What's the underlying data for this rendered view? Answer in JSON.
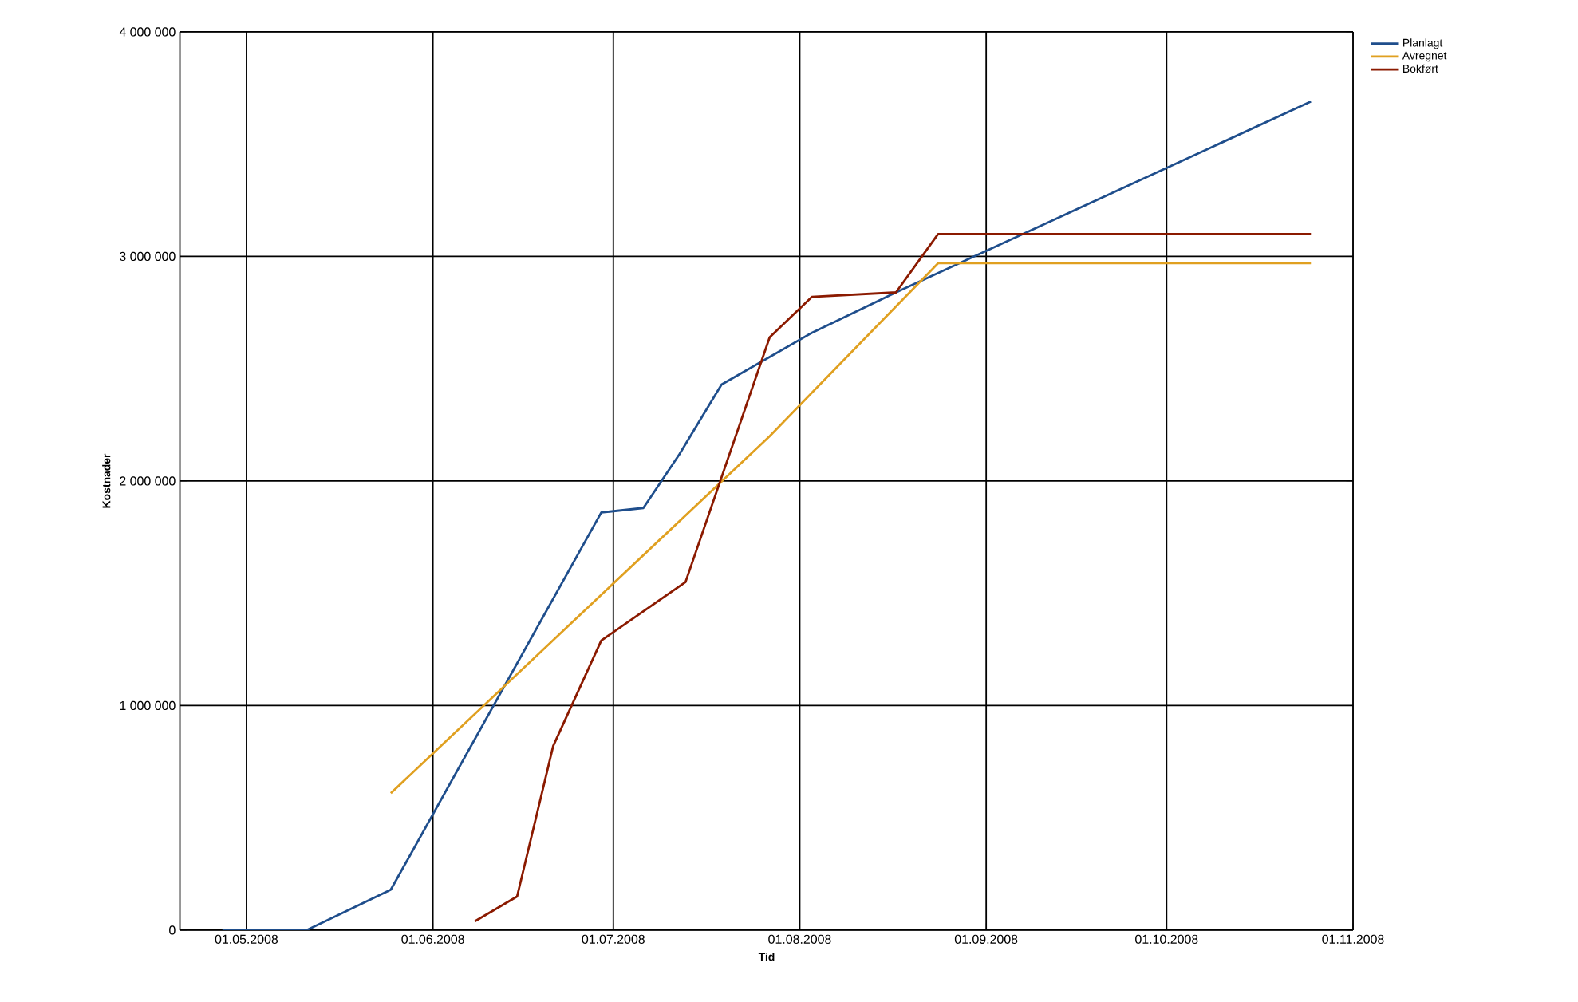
{
  "chart_data": {
    "type": "line",
    "xlabel": "Tid",
    "ylabel": "Kostnader",
    "xlim": [
      "2008-04-20",
      "2008-11-01"
    ],
    "xticks": [
      {
        "value": "2008-05-01",
        "label": "01.05.2008"
      },
      {
        "value": "2008-06-01",
        "label": "01.06.2008"
      },
      {
        "value": "2008-07-01",
        "label": "01.07.2008"
      },
      {
        "value": "2008-08-01",
        "label": "01.08.2008"
      },
      {
        "value": "2008-09-01",
        "label": "01.09.2008"
      },
      {
        "value": "2008-10-01",
        "label": "01.10.2008"
      },
      {
        "value": "2008-11-01",
        "label": "01.11.2008"
      }
    ],
    "ylim": [
      0,
      4000000
    ],
    "yticks": [
      {
        "value": 0,
        "label": "0"
      },
      {
        "value": 1000000,
        "label": "1 000 000"
      },
      {
        "value": 2000000,
        "label": "2 000 000"
      },
      {
        "value": 3000000,
        "label": "3 000 000"
      },
      {
        "value": 4000000,
        "label": "4 000 000"
      }
    ],
    "grid": true,
    "legend": "top right",
    "marker": "none",
    "line_style": "solid",
    "series": [
      {
        "name": "Planlagt",
        "color": "#1f4e8c",
        "x": [
          "2008-04-27",
          "2008-05-11",
          "2008-05-25",
          "2008-06-29",
          "2008-07-06",
          "2008-07-12",
          "2008-07-19",
          "2008-08-03",
          "2008-08-17",
          "2008-10-25"
        ],
        "values": [
          0,
          0,
          180000,
          1860000,
          1880000,
          2120000,
          2430000,
          2660000,
          2840000,
          3690000
        ]
      },
      {
        "name": "Avregnet",
        "color": "#e0a020",
        "x": [
          "2008-05-25",
          "2008-07-27",
          "2008-08-24",
          "2008-10-25"
        ],
        "values": [
          610000,
          2200000,
          2970000,
          2970000
        ]
      },
      {
        "name": "Bokført",
        "color": "#8b1a00",
        "x": [
          "2008-06-08",
          "2008-06-15",
          "2008-06-21",
          "2008-06-29",
          "2008-07-13",
          "2008-07-27",
          "2008-08-03",
          "2008-08-17",
          "2008-08-24",
          "2008-10-25"
        ],
        "values": [
          40000,
          150000,
          820000,
          1290000,
          1550000,
          2640000,
          2820000,
          2840000,
          3100000,
          3100000
        ]
      }
    ]
  }
}
